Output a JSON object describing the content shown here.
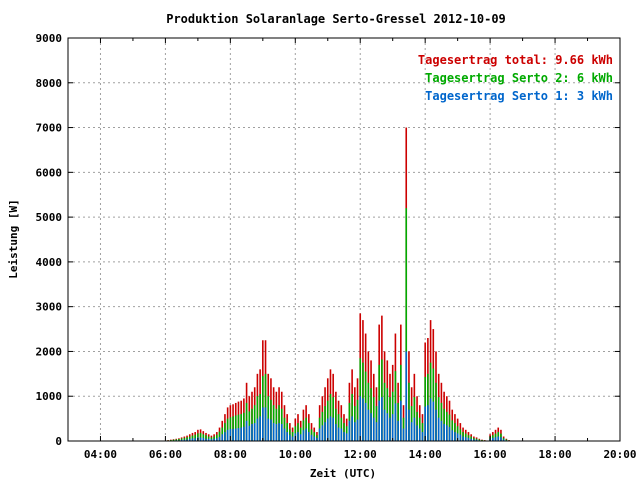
{
  "chart_data": {
    "type": "bar",
    "title": "Produktion Solaranlage Serto-Gressel 2012-10-09",
    "xlabel": "Zeit (UTC)",
    "ylabel": "Leistung [W]",
    "ylim": [
      0,
      9000
    ],
    "y_ticks": [
      "0",
      "1000",
      "2000",
      "3000",
      "4000",
      "5000",
      "6000",
      "7000",
      "8000",
      "9000"
    ],
    "x_ticks": [
      "04:00",
      "06:00",
      "08:00",
      "10:00",
      "12:00",
      "14:00",
      "16:00",
      "18:00",
      "20:00"
    ],
    "xlim_hours": [
      3.0,
      20.0
    ],
    "grid": true,
    "legend_position": "top-right",
    "legend": [
      {
        "series": "total",
        "label": "Tagesertrag total: 9.66 kWh",
        "color": "#cc0000"
      },
      {
        "series": "serto2",
        "label": "Tagesertrag Serto 2: 6 kWh",
        "color": "#00aa00"
      },
      {
        "series": "serto1",
        "label": "Tagesertrag Serto 1: 3 kWh",
        "color": "#0066cc"
      }
    ],
    "x": [
      "06:05",
      "06:10",
      "06:15",
      "06:20",
      "06:25",
      "06:30",
      "06:35",
      "06:40",
      "06:45",
      "06:50",
      "06:55",
      "07:00",
      "07:05",
      "07:10",
      "07:15",
      "07:20",
      "07:25",
      "07:30",
      "07:35",
      "07:40",
      "07:45",
      "07:50",
      "07:55",
      "08:00",
      "08:05",
      "08:10",
      "08:15",
      "08:20",
      "08:25",
      "08:30",
      "08:35",
      "08:40",
      "08:45",
      "08:50",
      "08:55",
      "09:00",
      "09:05",
      "09:10",
      "09:15",
      "09:20",
      "09:25",
      "09:30",
      "09:35",
      "09:40",
      "09:45",
      "09:50",
      "09:55",
      "10:00",
      "10:05",
      "10:10",
      "10:15",
      "10:20",
      "10:25",
      "10:30",
      "10:35",
      "10:40",
      "10:45",
      "10:50",
      "10:55",
      "11:00",
      "11:05",
      "11:10",
      "11:15",
      "11:20",
      "11:25",
      "11:30",
      "11:35",
      "11:40",
      "11:45",
      "11:50",
      "11:55",
      "12:00",
      "12:05",
      "12:10",
      "12:15",
      "12:20",
      "12:25",
      "12:30",
      "12:35",
      "12:40",
      "12:45",
      "12:50",
      "12:55",
      "13:00",
      "13:05",
      "13:10",
      "13:15",
      "13:20",
      "13:25",
      "13:30",
      "13:35",
      "13:40",
      "13:45",
      "13:50",
      "13:55",
      "14:00",
      "14:05",
      "14:10",
      "14:15",
      "14:20",
      "14:25",
      "14:30",
      "14:35",
      "14:40",
      "14:45",
      "14:50",
      "14:55",
      "15:00",
      "15:05",
      "15:10",
      "15:15",
      "15:20",
      "15:25",
      "15:30",
      "15:35",
      "15:40",
      "15:45",
      "15:50",
      "15:55",
      "16:00",
      "16:05",
      "16:10",
      "16:15",
      "16:20",
      "16:25",
      "16:30",
      "16:35"
    ],
    "series": [
      {
        "name": "total",
        "color": "#cc0000",
        "values": [
          20,
          30,
          40,
          50,
          60,
          80,
          100,
          120,
          150,
          180,
          200,
          250,
          260,
          220,
          180,
          150,
          120,
          150,
          200,
          300,
          450,
          600,
          750,
          800,
          820,
          850,
          880,
          900,
          950,
          1300,
          1000,
          1100,
          1200,
          1500,
          1600,
          2250,
          2250,
          1500,
          1400,
          1200,
          1100,
          1200,
          1100,
          800,
          600,
          400,
          300,
          500,
          600,
          450,
          700,
          800,
          600,
          400,
          300,
          200,
          800,
          1000,
          1200,
          1400,
          1600,
          1500,
          1100,
          900,
          800,
          600,
          500,
          1300,
          1600,
          1200,
          1400,
          2850,
          2700,
          2400,
          2000,
          1800,
          1500,
          1200,
          2600,
          2800,
          2000,
          1800,
          1500,
          1700,
          2400,
          1300,
          2600,
          800,
          7000,
          2000,
          1200,
          1500,
          1000,
          800,
          600,
          2200,
          2300,
          2700,
          2500,
          2000,
          1500,
          1300,
          1100,
          1000,
          900,
          700,
          600,
          500,
          400,
          300,
          250,
          200,
          150,
          100,
          80,
          50,
          30,
          20,
          10,
          150,
          200,
          250,
          300,
          250,
          100,
          50,
          20
        ]
      },
      {
        "name": "serto2",
        "color": "#00aa00",
        "values": [
          15,
          20,
          30,
          35,
          45,
          55,
          70,
          85,
          100,
          120,
          140,
          170,
          180,
          150,
          130,
          100,
          80,
          100,
          140,
          210,
          300,
          400,
          500,
          530,
          550,
          570,
          590,
          600,
          630,
          850,
          660,
          720,
          800,
          1000,
          1050,
          1450,
          1500,
          1000,
          920,
          800,
          720,
          800,
          720,
          520,
          400,
          260,
          200,
          330,
          400,
          300,
          460,
          520,
          400,
          260,
          200,
          130,
          520,
          650,
          780,
          900,
          1050,
          980,
          720,
          600,
          520,
          400,
          330,
          850,
          1050,
          780,
          920,
          1850,
          1750,
          1550,
          1300,
          1180,
          980,
          780,
          1700,
          1820,
          1300,
          1180,
          980,
          1100,
          1560,
          850,
          1700,
          520,
          5200,
          1300,
          780,
          980,
          650,
          520,
          400,
          1430,
          1500,
          1750,
          1620,
          1300,
          980,
          850,
          720,
          650,
          590,
          460,
          400,
          330,
          260,
          200,
          165,
          130,
          100,
          65,
          50,
          35,
          20,
          15,
          8,
          100,
          130,
          165,
          200,
          165,
          65,
          35,
          15
        ]
      },
      {
        "name": "serto1",
        "color": "#0066cc",
        "values": [
          5,
          10,
          10,
          15,
          15,
          25,
          30,
          35,
          50,
          60,
          60,
          80,
          80,
          70,
          50,
          50,
          40,
          50,
          60,
          90,
          150,
          200,
          250,
          270,
          270,
          280,
          290,
          300,
          320,
          450,
          340,
          380,
          400,
          500,
          550,
          750,
          750,
          500,
          480,
          400,
          380,
          400,
          380,
          280,
          200,
          140,
          100,
          170,
          200,
          150,
          240,
          280,
          200,
          140,
          100,
          70,
          280,
          350,
          420,
          500,
          550,
          520,
          380,
          300,
          280,
          200,
          170,
          450,
          550,
          420,
          480,
          1000,
          950,
          850,
          700,
          620,
          520,
          420,
          900,
          980,
          700,
          620,
          520,
          600,
          840,
          450,
          900,
          280,
          2000,
          700,
          420,
          520,
          350,
          280,
          200,
          770,
          800,
          950,
          880,
          700,
          520,
          450,
          380,
          350,
          310,
          240,
          200,
          170,
          140,
          100,
          85,
          70,
          50,
          35,
          30,
          15,
          10,
          5,
          2,
          50,
          70,
          85,
          100,
          85,
          35,
          15,
          5
        ]
      }
    ]
  }
}
